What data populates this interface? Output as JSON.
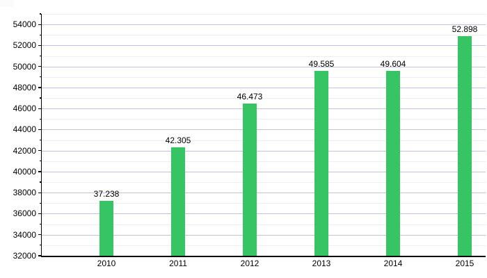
{
  "chart_data": {
    "type": "bar",
    "title": "",
    "xlabel": "",
    "ylabel": "",
    "categories": [
      "2010",
      "2011",
      "2012",
      "2013",
      "2014",
      "2015"
    ],
    "values": [
      37238,
      42305,
      46473,
      49585,
      49604,
      52898
    ],
    "bar_labels": [
      "37.238",
      "42.305",
      "46.473",
      "49.585",
      "49.604",
      "52.898"
    ],
    "ylim": [
      32000,
      55000
    ],
    "y_major_tick_step": 2000,
    "y_minor_tick_step": 1000,
    "y_tick_labels": [
      "32000",
      "34000",
      "36000",
      "38000",
      "40000",
      "42000",
      "44000",
      "46000",
      "48000",
      "50000",
      "52000",
      "54000"
    ],
    "grid": "horizontal-major-and-minor",
    "legend": "none",
    "colors": {
      "bar": "#37c464",
      "major_grid": "#c2c2de",
      "minor_grid": "#f1eef3",
      "axis": "#000000",
      "text": "#000000",
      "background": "#ffffff"
    }
  }
}
